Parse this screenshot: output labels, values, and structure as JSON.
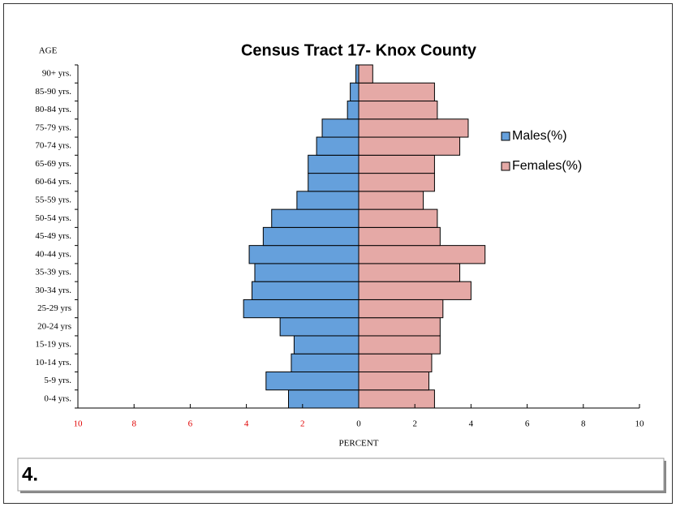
{
  "chart_data": {
    "type": "pyramid",
    "title": "Census Tract 17- Knox County",
    "y_label": "AGE",
    "x_label": "PERCENT",
    "categories": [
      "0-4 yrs.",
      "5-9 yrs.",
      "10-14 yrs.",
      "15-19 yrs.",
      "20-24 yrs",
      "25-29 yrs",
      "30-34 yrs.",
      "35-39 yrs.",
      "40-44 yrs.",
      "45-49 yrs.",
      "50-54 yrs.",
      "55-59 yrs.",
      "60-64 yrs.",
      "65-69 yrs.",
      "70-74 yrs.",
      "75-79 yrs.",
      "80-84 yrs.",
      "85-90 yrs.",
      "90+ yrs."
    ],
    "series": [
      {
        "name": "Males(%)",
        "color": "#65a0dc",
        "values": [
          -2.5,
          -3.3,
          -2.4,
          -2.3,
          -2.8,
          -4.1,
          -3.8,
          -3.7,
          -3.9,
          -3.4,
          -3.1,
          -2.2,
          -1.8,
          -1.8,
          -1.5,
          -1.3,
          -0.4,
          -0.3,
          -0.1
        ]
      },
      {
        "name": "Females(%)",
        "color": "#e5a9a6",
        "values": [
          2.7,
          2.5,
          2.6,
          2.9,
          2.9,
          3.0,
          4.0,
          3.6,
          4.5,
          2.9,
          2.8,
          2.3,
          2.7,
          2.7,
          3.6,
          3.9,
          2.8,
          2.7,
          0.5
        ]
      }
    ],
    "xlim": [
      -10,
      10
    ],
    "xticks": [
      {
        "value": -10,
        "label": "10"
      },
      {
        "value": -8,
        "label": "8"
      },
      {
        "value": -6,
        "label": "6"
      },
      {
        "value": -4,
        "label": "4"
      },
      {
        "value": -2,
        "label": "2"
      },
      0,
      2,
      4,
      6,
      8,
      10
    ],
    "negative_tick_color": "#e00000"
  },
  "caption": "4."
}
